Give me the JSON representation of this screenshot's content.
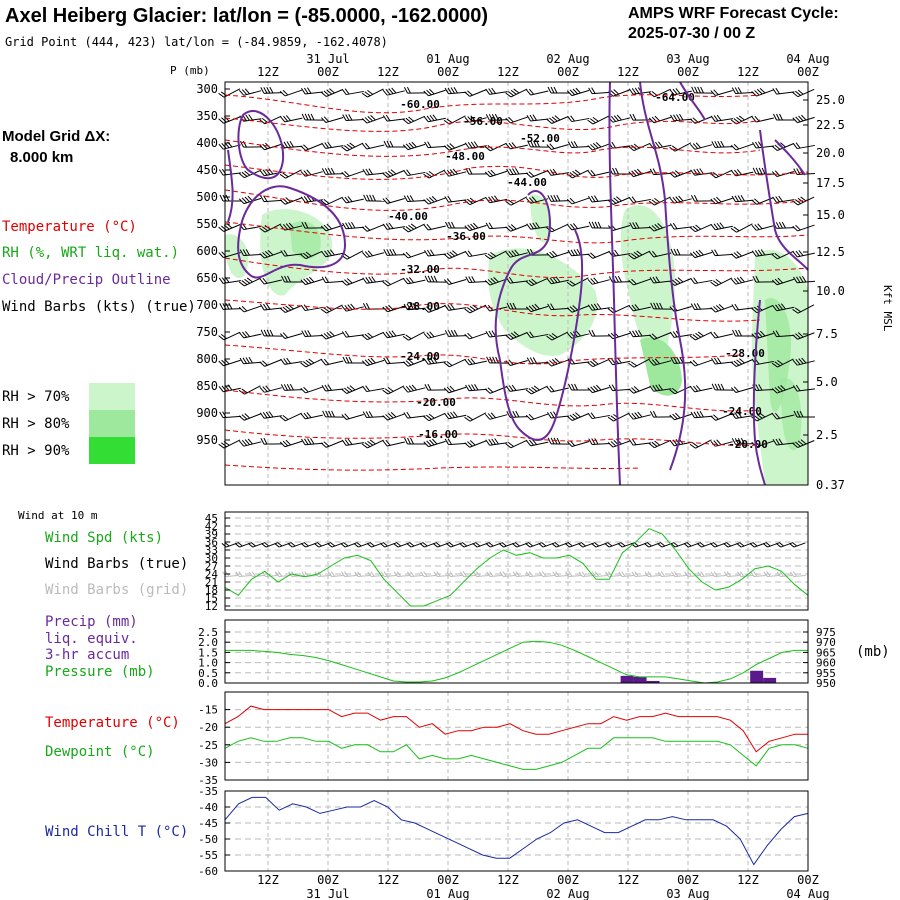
{
  "header": {
    "title": "Axel Heiberg Glacier:  lat/lon = (-85.0000, -162.0000)",
    "subtitle": "Grid Point (444, 423) lat/lon = (-84.9859, -162.4078)",
    "cycle_line1": "AMPS WRF Forecast Cycle:",
    "cycle_line2": "2025-07-30 / 00  Z"
  },
  "grid_label": {
    "line1": "Model Grid ΔX:",
    "line2": "8.000 km"
  },
  "legend": {
    "temperature": "Temperature (°C)",
    "rh": "RH (%, WRT liq. wat.)",
    "cloud": "Cloud/Precip Outline",
    "barbs": "Wind Barbs (kts) (true)",
    "rh70": "RH > 70%",
    "rh80": "RH > 80%",
    "rh90": "RH > 90%",
    "color_temp": "#e00000",
    "color_rh": "#18a818",
    "color_cloud": "#6a2a9a",
    "color_rh70": "#ccf5cc",
    "color_rh80": "#9de89d",
    "color_rh90": "#33dd33"
  },
  "time_axis": {
    "hours": [
      "12Z",
      "00Z",
      "12Z",
      "00Z",
      "12Z",
      "00Z",
      "12Z",
      "00Z",
      "12Z",
      "00Z"
    ],
    "dates": [
      "31 Jul",
      "01 Aug",
      "02 Aug",
      "03 Aug",
      "04 Aug"
    ]
  },
  "chart_data": [
    {
      "type": "heatmap",
      "name": "upper-air time-height section",
      "ylabel": "P (mb)",
      "yticks": [
        "300",
        "350",
        "400",
        "450",
        "500",
        "550",
        "600",
        "650",
        "700",
        "750",
        "800",
        "850",
        "900",
        "950"
      ],
      "right_ticks": [
        "25.0",
        "22.5",
        "20.0",
        "17.5",
        "15.0",
        "12.5",
        "10.0",
        "7.5",
        "5.0",
        "2.5",
        "0.37"
      ],
      "right_label": "Kft MSL",
      "temperature_contour_labels": [
        "-64.00",
        "-60.00",
        "-56.00",
        "-52.00",
        "-48.00",
        "-44.00",
        "-40.00",
        "-36.00",
        "-32.00",
        "-28.00",
        "-28.00",
        "-24.00",
        "-24.00",
        "-20.00",
        "-20.00",
        "-16.00"
      ]
    },
    {
      "type": "line",
      "name": "wind at 10 m",
      "title": "Wind at 10 m",
      "labels": {
        "spd": "Wind Spd (kts)",
        "barbs_true": "Wind Barbs (true)",
        "barbs_grid": "Wind Barbs (grid)"
      },
      "yticks": [
        "45",
        "42",
        "39",
        "36",
        "33",
        "30",
        "27",
        "24",
        "21",
        "18",
        "15",
        "12"
      ],
      "ylim": [
        12,
        45
      ],
      "series": [
        {
          "values": [
            19,
            16,
            22,
            25,
            21,
            24,
            23,
            24,
            27,
            30,
            31,
            29,
            22,
            17,
            12,
            12,
            14,
            16,
            21,
            26,
            30,
            33,
            31,
            32,
            30,
            30,
            31,
            28,
            22,
            22,
            32,
            36,
            41,
            39,
            33,
            26,
            21,
            18,
            19,
            22,
            26,
            27,
            25,
            20,
            16
          ]
        }
      ]
    },
    {
      "type": "bar",
      "name": "precipitation and pressure",
      "labels": {
        "precip1": "Precip (mm)",
        "precip2": "liq. equiv.",
        "precip3": "3-hr accum",
        "pressure": "Pressure (mb)"
      },
      "unit_right": "(mb)",
      "yticks_left": [
        "2.5",
        "2.0",
        "1.5",
        "1.0",
        "0.5",
        "0.0"
      ],
      "yticks_right": [
        "975",
        "970",
        "965",
        "960",
        "955",
        "950"
      ],
      "ylim_left": [
        0,
        2.5
      ],
      "ylim_right": [
        950,
        975
      ],
      "precip": [
        {
          "i": 31,
          "v": 0.35
        },
        {
          "i": 32,
          "v": 0.3
        },
        {
          "i": 33,
          "v": 0.1
        },
        {
          "i": 41,
          "v": 0.6
        },
        {
          "i": 42,
          "v": 0.25
        }
      ],
      "pressure": [
        966,
        966,
        966,
        965.5,
        965,
        964,
        963.5,
        962.5,
        961,
        959,
        957,
        955,
        953,
        951,
        950.5,
        950.5,
        951,
        952.5,
        955,
        958,
        961,
        964,
        967,
        970,
        970.5,
        970,
        968.5,
        966,
        963,
        960,
        957,
        954,
        953,
        953,
        953,
        952,
        951,
        950,
        950.5,
        952,
        955,
        959,
        962,
        965,
        966,
        966
      ]
    },
    {
      "type": "line",
      "name": "temperature and dewpoint",
      "labels": {
        "temp": "Temperature (°C)",
        "dew": "Dewpoint (°C)"
      },
      "yticks": [
        "-15",
        "-20",
        "-25",
        "-30",
        "-35"
      ],
      "ylim": [
        -35,
        -10
      ],
      "series": [
        {
          "values": [
            -19,
            -17,
            -14,
            -15,
            -15,
            -15,
            -15,
            -15,
            -15,
            -17,
            -16,
            -16,
            -18,
            -17,
            -17,
            -20,
            -19,
            -22,
            -21,
            -21,
            -20,
            -20,
            -19,
            -21,
            -22,
            -22,
            -21,
            -20,
            -19,
            -19,
            -17,
            -18,
            -17,
            -17,
            -16,
            -17,
            -17,
            -17,
            -17,
            -18,
            -21,
            -27,
            -24,
            -23,
            -22,
            -22
          ]
        },
        {
          "values": [
            -26,
            -24,
            -23,
            -24,
            -24,
            -23,
            -23,
            -24,
            -24,
            -26,
            -25,
            -25,
            -27,
            -27,
            -25,
            -29,
            -28,
            -29,
            -29,
            -28,
            -29,
            -30,
            -31,
            -32,
            -32,
            -31,
            -30,
            -28,
            -26,
            -26,
            -23,
            -23,
            -23,
            -23,
            -24,
            -24,
            -24,
            -24,
            -24,
            -25,
            -28,
            -31,
            -26,
            -25,
            -25,
            -26
          ]
        }
      ]
    },
    {
      "type": "line",
      "name": "wind chill",
      "labels": {
        "chill": "Wind Chill T (°C)"
      },
      "yticks": [
        "-35",
        "-40",
        "-45",
        "-50",
        "-55",
        "-60"
      ],
      "ylim": [
        -60,
        -35
      ],
      "series": [
        {
          "values": [
            -44,
            -39,
            -37,
            -37,
            -41,
            -39,
            -40,
            -42,
            -41,
            -40,
            -40,
            -38,
            -40,
            -44,
            -45,
            -47,
            -49,
            -51,
            -53,
            -55,
            -56,
            -56,
            -53,
            -50,
            -48,
            -45,
            -44,
            -46,
            -48,
            -48,
            -46,
            -44,
            -44,
            -43,
            -44,
            -44,
            -44,
            -46,
            -50,
            -58,
            -52,
            -47,
            -43,
            -42
          ]
        }
      ]
    }
  ]
}
